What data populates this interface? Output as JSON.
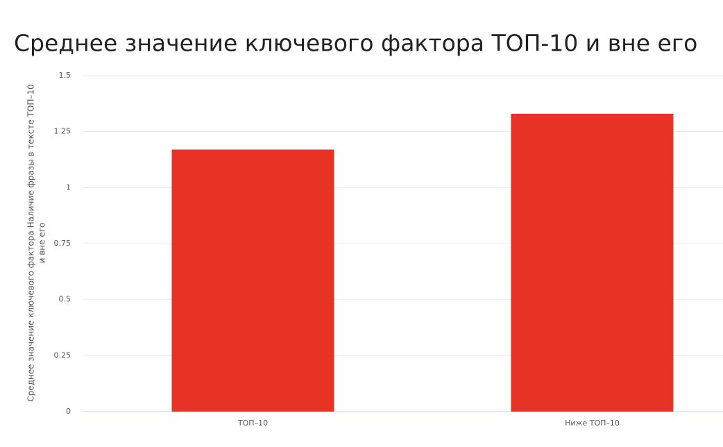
{
  "chart_data": {
    "type": "bar",
    "title": "Среднее значение ключевого фактора ТОП-10 и вне его",
    "ylabel": [
      "Среднее значение ключевого фактора Наличие фразы в тексте ТОП–10",
      "и вне его"
    ],
    "categories": [
      "ТОП–10",
      "Ниже ТОП–10"
    ],
    "values": [
      1.17,
      1.33
    ],
    "color": "#e63325",
    "ylim": [
      0,
      1.5
    ],
    "yticks": [
      0,
      0.25,
      0.5,
      0.75,
      1,
      1.25,
      1.5
    ],
    "grid": true
  }
}
